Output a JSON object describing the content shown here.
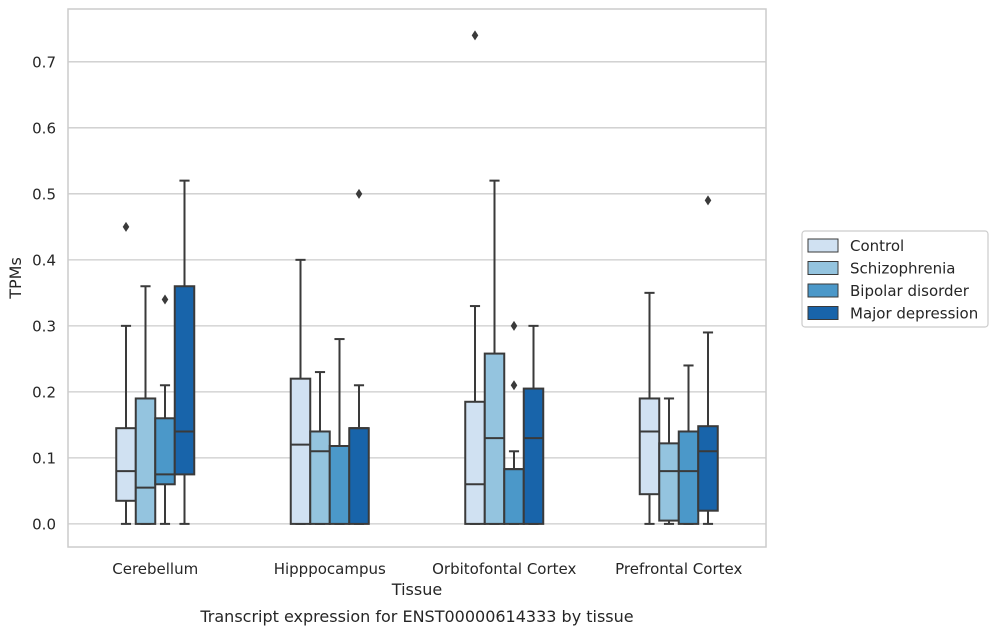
{
  "chart_data": {
    "type": "boxplot",
    "caption": "Transcript expression for ENST00000614333 by tissue",
    "xlabel": "Tissue",
    "ylabel": "TPMs",
    "ylim": [
      -0.035,
      0.78
    ],
    "yticks": [
      "0.0",
      "0.1",
      "0.2",
      "0.3",
      "0.4",
      "0.5",
      "0.6",
      "0.7"
    ],
    "yticks_values": [
      0.0,
      0.1,
      0.2,
      0.3,
      0.4,
      0.5,
      0.6,
      0.7
    ],
    "grid": "horizontal",
    "legend_position": "right-outside",
    "categories": [
      "Cerebellum",
      "Hipppocampus",
      "Orbitofontal Cortex",
      "Prefrontal Cortex"
    ],
    "series": [
      {
        "name": "Control",
        "color": "#d0e1f2",
        "boxes": [
          {
            "whislo": 0.0,
            "q1": 0.035,
            "med": 0.08,
            "q3": 0.145,
            "whishi": 0.3,
            "fliers": [
              0.45
            ]
          },
          {
            "whislo": 0.0,
            "q1": 0.0,
            "med": 0.12,
            "q3": 0.22,
            "whishi": 0.4,
            "fliers": []
          },
          {
            "whislo": 0.0,
            "q1": 0.0,
            "med": 0.06,
            "q3": 0.185,
            "whishi": 0.33,
            "fliers": [
              0.74
            ]
          },
          {
            "whislo": 0.0,
            "q1": 0.045,
            "med": 0.14,
            "q3": 0.19,
            "whishi": 0.35,
            "fliers": []
          }
        ]
      },
      {
        "name": "Schizophrenia",
        "color": "#94c4df",
        "boxes": [
          {
            "whislo": 0.0,
            "q1": 0.0,
            "med": 0.055,
            "q3": 0.19,
            "whishi": 0.36,
            "fliers": []
          },
          {
            "whislo": 0.0,
            "q1": 0.0,
            "med": 0.11,
            "q3": 0.14,
            "whishi": 0.23,
            "fliers": []
          },
          {
            "whislo": 0.0,
            "q1": 0.0,
            "med": 0.13,
            "q3": 0.258,
            "whishi": 0.52,
            "fliers": []
          },
          {
            "whislo": 0.0,
            "q1": 0.005,
            "med": 0.08,
            "q3": 0.122,
            "whishi": 0.19,
            "fliers": []
          }
        ]
      },
      {
        "name": "Bipolar disorder",
        "color": "#4b98c9",
        "boxes": [
          {
            "whislo": 0.0,
            "q1": 0.06,
            "med": 0.075,
            "q3": 0.16,
            "whishi": 0.21,
            "fliers": [
              0.34
            ]
          },
          {
            "whislo": 0.0,
            "q1": 0.0,
            "med": 0.118,
            "q3": 0.118,
            "whishi": 0.28,
            "fliers": []
          },
          {
            "whislo": 0.0,
            "q1": 0.0,
            "med": 0.083,
            "q3": 0.083,
            "whishi": 0.11,
            "fliers": [
              0.21,
              0.3
            ]
          },
          {
            "whislo": 0.0,
            "q1": 0.0,
            "med": 0.08,
            "q3": 0.14,
            "whishi": 0.24,
            "fliers": []
          }
        ]
      },
      {
        "name": "Major depression",
        "color": "#1864aa",
        "boxes": [
          {
            "whislo": 0.0,
            "q1": 0.075,
            "med": 0.14,
            "q3": 0.36,
            "whishi": 0.52,
            "fliers": []
          },
          {
            "whislo": 0.0,
            "q1": 0.0,
            "med": 0.145,
            "q3": 0.145,
            "whishi": 0.21,
            "fliers": [
              0.5
            ]
          },
          {
            "whislo": 0.0,
            "q1": 0.0,
            "med": 0.13,
            "q3": 0.205,
            "whishi": 0.3,
            "fliers": []
          },
          {
            "whislo": 0.0,
            "q1": 0.02,
            "med": 0.11,
            "q3": 0.148,
            "whishi": 0.29,
            "fliers": [
              0.49
            ]
          }
        ]
      }
    ]
  },
  "style": {
    "line_color": "#3a3a3a",
    "grid_color": "#cccccc",
    "frame_color": "#cccccc"
  }
}
